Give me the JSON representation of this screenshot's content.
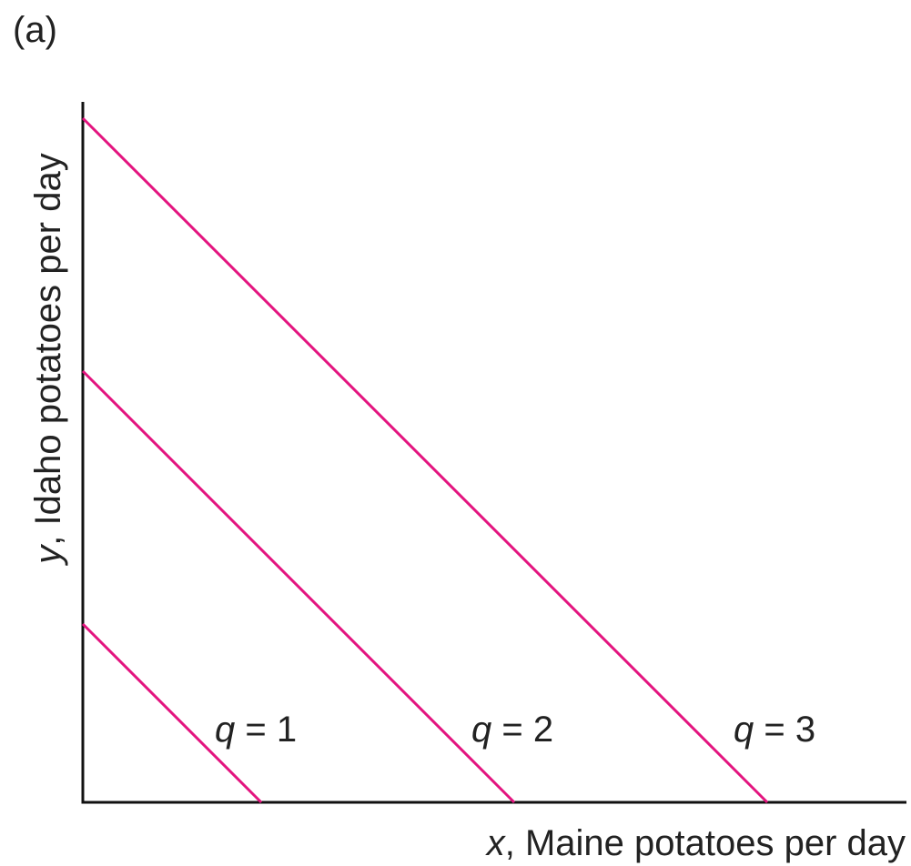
{
  "panel": "(a)",
  "x_axis": {
    "symbol": "x",
    "text": ", Maine potatoes per day"
  },
  "y_axis": {
    "symbol": "y",
    "text": ", Idaho potatoes per day"
  },
  "curves": [
    {
      "symbol": "q",
      "text": " = 1"
    },
    {
      "symbol": "q",
      "text": " = 2"
    },
    {
      "symbol": "q",
      "text": " = 3"
    }
  ]
}
